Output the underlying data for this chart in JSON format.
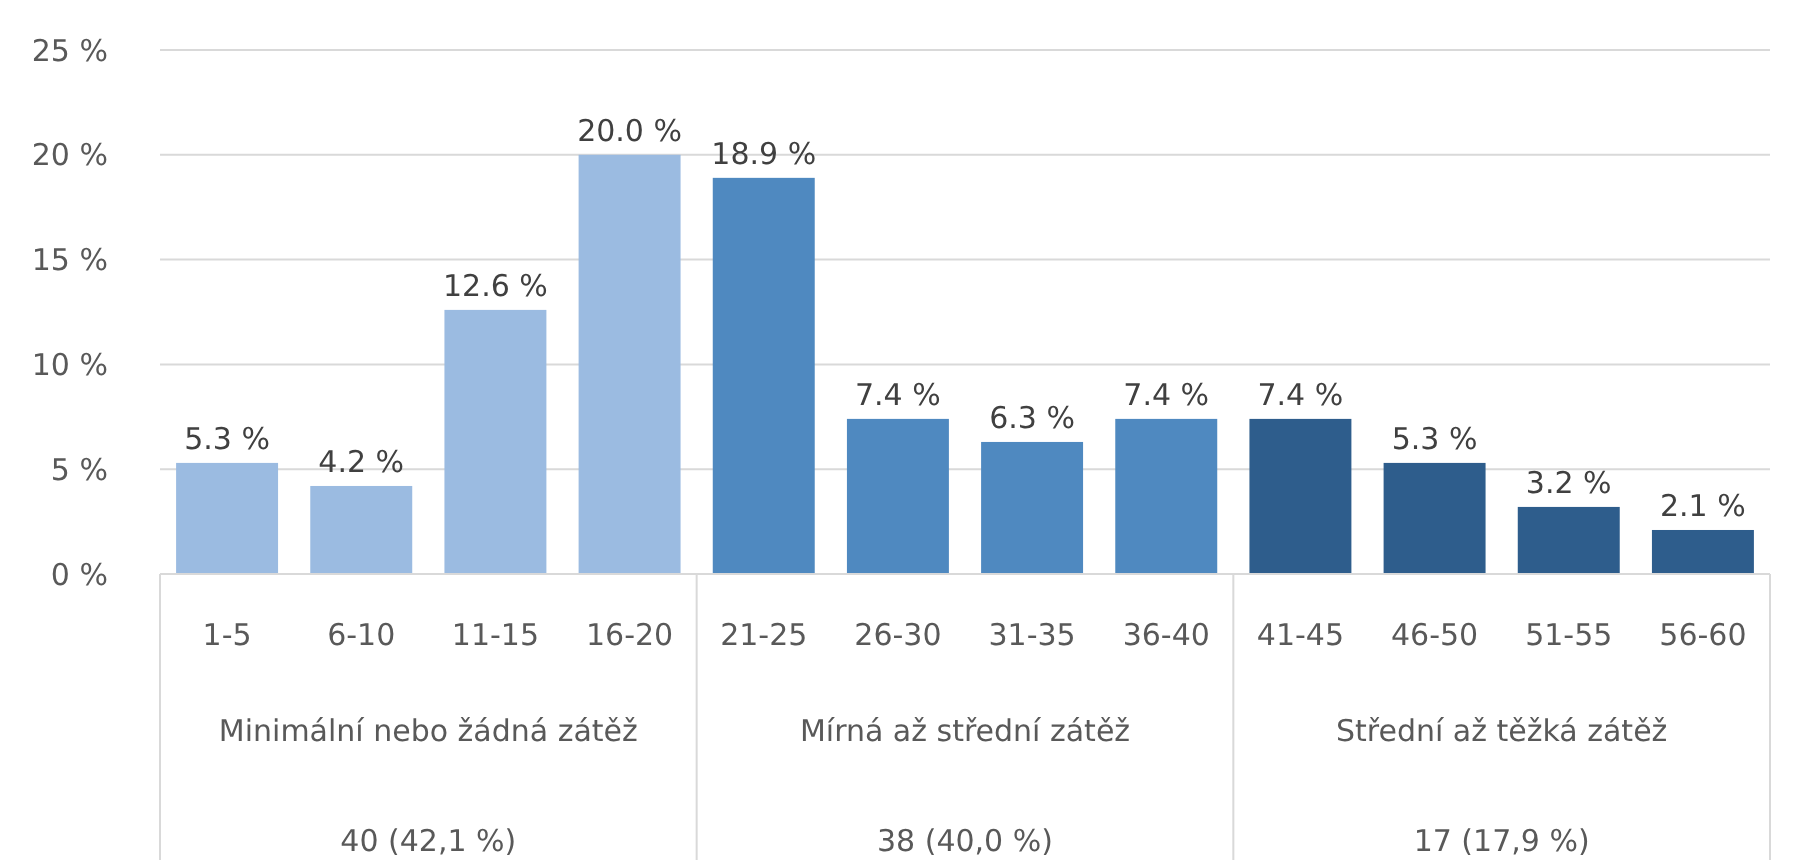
{
  "chart_data": {
    "type": "bar",
    "categories": [
      "1-5",
      "6-10",
      "11-15",
      "16-20",
      "21-25",
      "26-30",
      "31-35",
      "36-40",
      "41-45",
      "46-50",
      "51-55",
      "56-60"
    ],
    "values": [
      5.3,
      4.2,
      12.6,
      20.0,
      18.9,
      7.4,
      6.3,
      7.4,
      7.4,
      5.3,
      3.2,
      2.1
    ],
    "colors": [
      "#9bbbe1",
      "#9bbbe1",
      "#9bbbe1",
      "#9bbbe1",
      "#4f89c0",
      "#4f89c0",
      "#4f89c0",
      "#4f89c0",
      "#2e5d8c",
      "#2e5d8c",
      "#2e5d8c",
      "#2e5d8c"
    ],
    "value_labels": [
      "5.3 %",
      "4.2 %",
      "12.6 %",
      "20.0 %",
      "18.9 %",
      "7.4 %",
      "6.3 %",
      "7.4 %",
      "7.4 %",
      "5.3 %",
      "3.2 %",
      "2.1 %"
    ],
    "ylim": [
      0,
      25
    ],
    "yticks": [
      {
        "value": 0,
        "label": "0 %"
      },
      {
        "value": 5,
        "label": "5 %"
      },
      {
        "value": 10,
        "label": "10 %"
      },
      {
        "value": 15,
        "label": "15 %"
      },
      {
        "value": 20,
        "label": "20 %"
      },
      {
        "value": 25,
        "label": "25 %"
      }
    ],
    "grid": "y",
    "annotations": [
      "Minimální nebo žádná zátěž",
      "Mírná až střední zátěž",
      "Střední až těžká zátěž",
      "40 (42,1 %)",
      "38 (40,0 %)",
      "17 (17,9 %)"
    ]
  }
}
